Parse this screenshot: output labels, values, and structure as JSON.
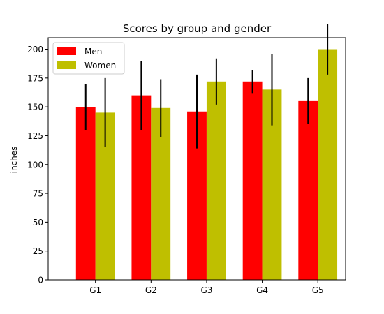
{
  "chart_data": {
    "type": "bar",
    "title": "Scores by group and gender",
    "xlabel": "",
    "ylabel": "inches",
    "categories": [
      "G1",
      "G2",
      "G3",
      "G4",
      "G5"
    ],
    "ylim": [
      0,
      210
    ],
    "yticks": [
      0,
      25,
      50,
      75,
      100,
      125,
      150,
      175,
      200
    ],
    "grid": false,
    "legend_position": "top-left",
    "series": [
      {
        "name": "Men",
        "color": "#ff0000",
        "values": [
          150,
          160,
          146,
          172,
          155
        ],
        "errors": [
          20,
          30,
          32,
          10,
          20
        ]
      },
      {
        "name": "Women",
        "color": "#bfbf00",
        "values": [
          145,
          149,
          172,
          165,
          200
        ],
        "errors": [
          30,
          25,
          20,
          31,
          22
        ]
      }
    ]
  }
}
